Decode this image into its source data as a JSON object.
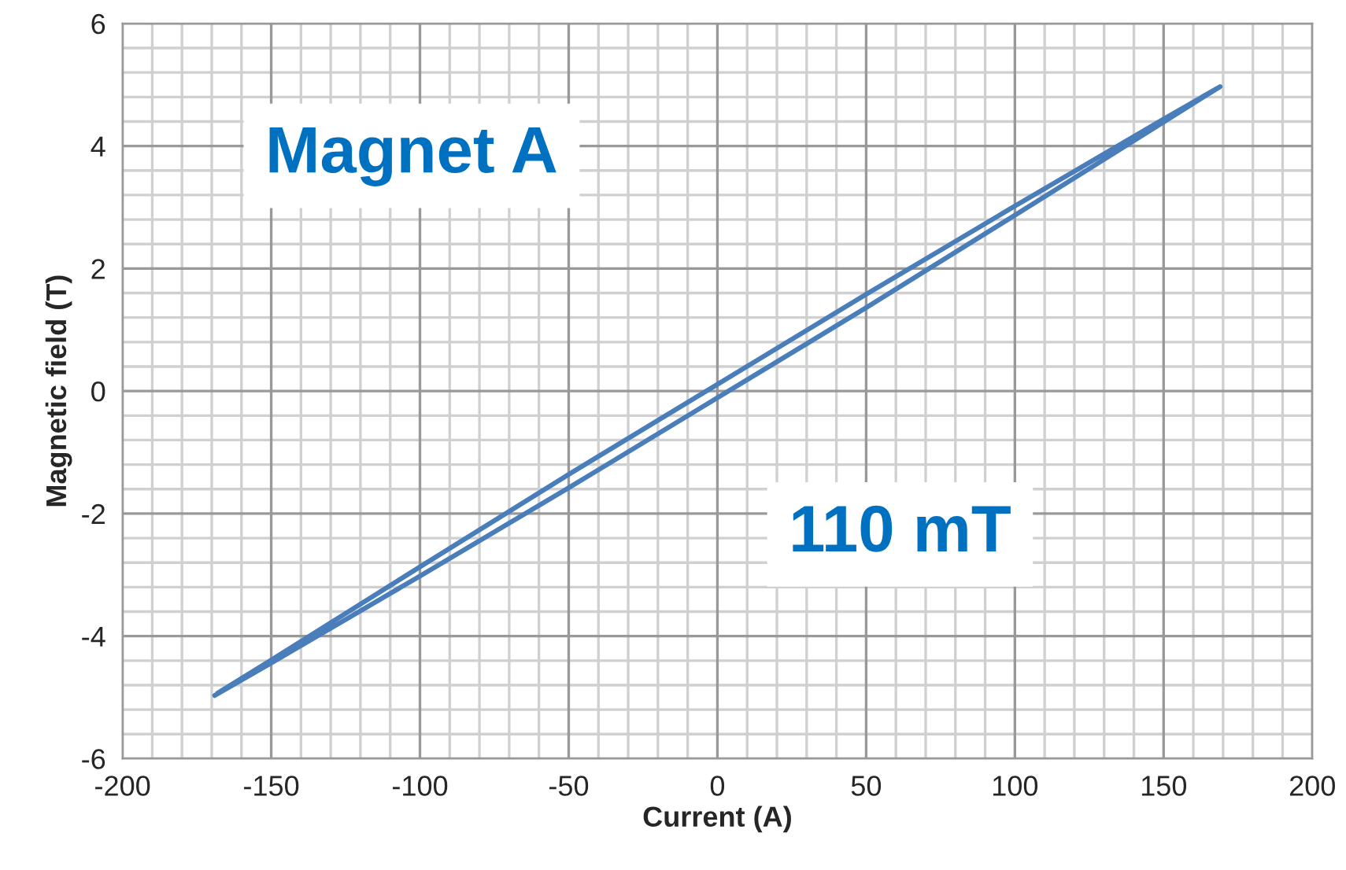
{
  "chart_data": {
    "type": "line",
    "xlabel": "Current (A)",
    "ylabel": "Magnetic field (T)",
    "annotations": [
      "Magnet A",
      "110 mT"
    ],
    "series": [
      {
        "color": "#4a7ebb",
        "x": [
          -169,
          -150,
          -100,
          -50,
          0,
          50,
          100,
          150,
          169,
          150,
          100,
          50,
          0,
          -50,
          -100,
          -150,
          -168
        ],
        "values": [
          -4.97,
          -4.44,
          -3.02,
          -1.58,
          -0.11,
          1.36,
          2.87,
          4.39,
          4.97,
          4.44,
          3.02,
          1.58,
          0.11,
          -1.36,
          -2.87,
          -4.39,
          -4.93
        ]
      }
    ],
    "xlim": [
      -200,
      200
    ],
    "xticks": [
      -200,
      -150,
      -100,
      -50,
      0,
      50,
      100,
      150,
      200
    ],
    "ylim": [
      -6,
      6
    ],
    "yticks": [
      -6,
      -4,
      -2,
      0,
      2,
      4,
      6
    ],
    "grid": true,
    "marker": "none",
    "line_style": "solid"
  }
}
